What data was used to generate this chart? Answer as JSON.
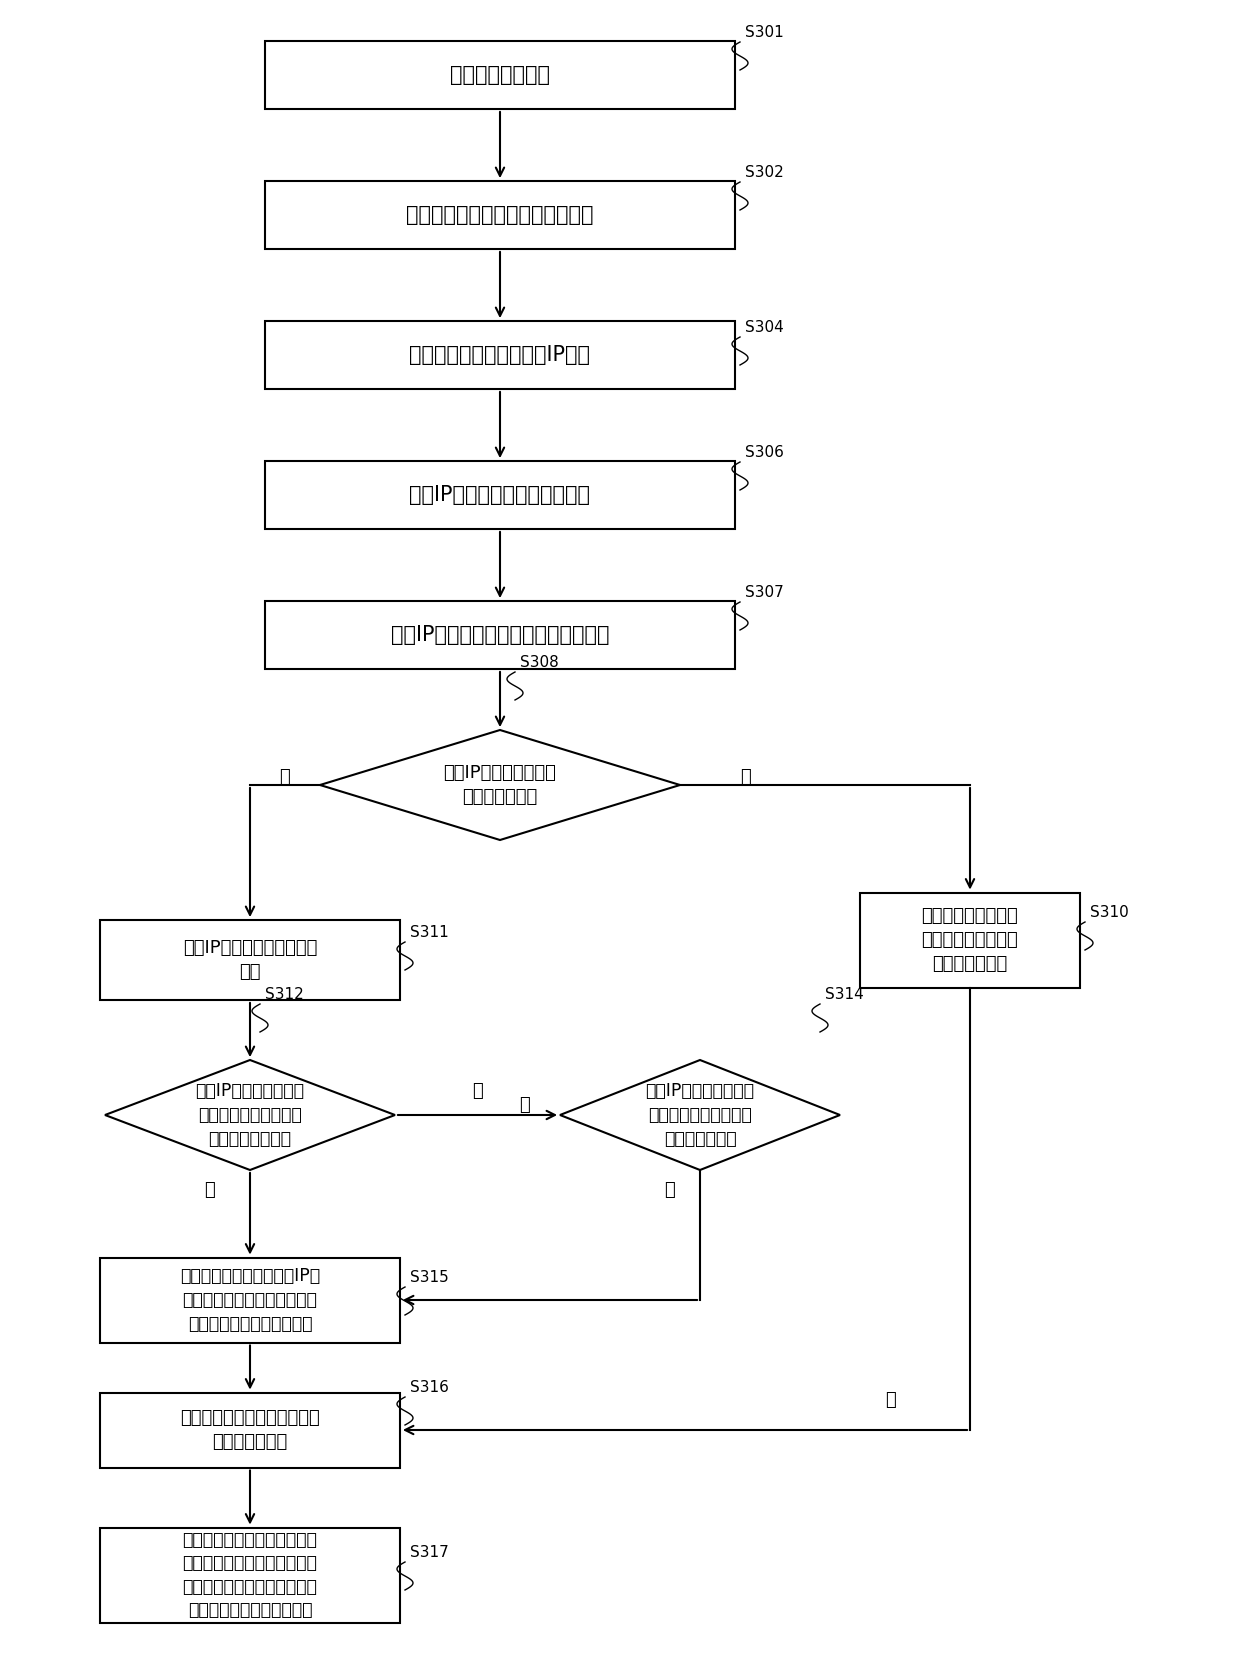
{
  "bg_color": "#ffffff",
  "nodes": {
    "S301": {
      "label": "确定目标地理位置",
      "step": "S301"
    },
    "S302": {
      "label": "检测目标地理位置的网页访客行为",
      "step": "S302"
    },
    "S304": {
      "label": "获取网页访客行为发生的IP地址",
      "step": "S304"
    },
    "S306": {
      "label": "获取IP地址对应的地理位置信息",
      "step": "S306"
    },
    "S307": {
      "label": "获取IP地址对应的地理位置信息的坐标",
      "step": "S307"
    },
    "S308_label": "判断IP地址是否有对应\n的地理位置坐标",
    "S311_label": "获取IP地址对应的地理位置\n坐标",
    "S310_label": "将地理位置信息的坐\n标作为目标地理位置\n的地理位置坐标",
    "S312_label": "判断IP地址对应的地理\n位置坐标和地理位置信\n息的坐标是否相同",
    "S314_label": "判断IP地址对应的地理\n位置坐标是否在地理位\n置信息的区域内",
    "S315_label": "将地理位置信息的坐标或IP地\n址对应的地理位置坐标作为目\n标地理位置的地理位置坐标",
    "S316_label": "统计目标地理位置发生的网页\n访客行为的数量",
    "S317_label": "根据目标地理位置的地理位置\n坐标和在目标地理位置发生的\n网页访客行为的数量确定目标\n地理位置的网页访问热力图"
  }
}
